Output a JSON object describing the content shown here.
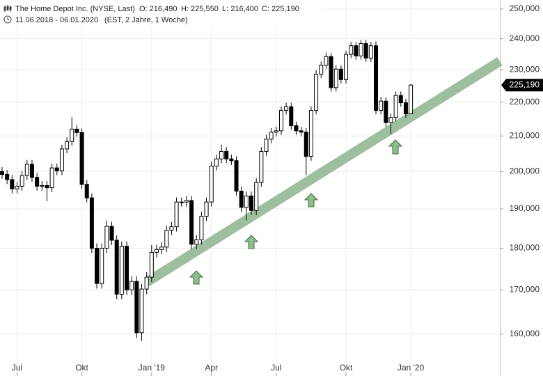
{
  "header": {
    "title": "The Home Depot Inc. (NYSE, Last)",
    "ohlc": [
      "O: 216,490",
      "H: 225,550",
      "L: 216,400",
      "C: 225,190"
    ],
    "range": "11.06.2018 - 06.01.2020",
    "info": "(EST, 2 Jahre, 1 Woche)"
  },
  "chart_data": {
    "type": "candlestick",
    "log_scale": true,
    "grid": true,
    "xlim": [
      -0.42,
      99.86
    ],
    "ylim": [
      151050,
      253100
    ],
    "xticks": [
      {
        "value": 3,
        "label": "Jul"
      },
      {
        "value": 16,
        "label": "Okt"
      },
      {
        "value": 30,
        "label": "Jan '19"
      },
      {
        "value": 42,
        "label": "Apr"
      },
      {
        "value": 55,
        "label": "Jul"
      },
      {
        "value": 69,
        "label": "Okt"
      },
      {
        "value": 82,
        "label": "Jan '20"
      }
    ],
    "yticks": [
      {
        "value": 160000,
        "label": "160,000"
      },
      {
        "value": 170000,
        "label": "170,000"
      },
      {
        "value": 180000,
        "label": "180,000"
      },
      {
        "value": 190000,
        "label": "190,000"
      },
      {
        "value": 200000,
        "label": "200,000"
      },
      {
        "value": 210000,
        "label": "210,000"
      },
      {
        "value": 220000,
        "label": "220,000"
      },
      {
        "value": 230000,
        "label": "230,000"
      },
      {
        "value": 240000,
        "label": "240,000"
      },
      {
        "value": 250000,
        "label": "250,000"
      }
    ],
    "open": [
      200000,
      199200,
      197800,
      195300,
      196000,
      198900,
      202000,
      198400,
      196000,
      196200,
      195600,
      201000,
      200200,
      206300,
      208400,
      212000,
      211000,
      196500,
      192900,
      180000,
      171500,
      180000,
      185500,
      182000,
      169000,
      180500,
      170000,
      172000,
      160300,
      170200,
      173000,
      179000,
      179700,
      180300,
      184500,
      185400,
      191800,
      191800,
      192200,
      181000,
      182100,
      188100,
      191800,
      201500,
      203500,
      205600,
      203500,
      203000,
      194700,
      190400,
      193400,
      189600,
      197000,
      205600,
      209100,
      211100,
      211500,
      217500,
      218600,
      213000,
      211500,
      211100,
      204200,
      217500,
      228600,
      231400,
      234200,
      224400,
      230200,
      226900,
      234900,
      237700,
      234400,
      238400,
      233700,
      237700,
      217500,
      220300,
      213900,
      215400,
      222000,
      219800,
      216490
    ],
    "high": [
      201200,
      200400,
      199000,
      197200,
      200100,
      203200,
      203200,
      199600,
      197400,
      197400,
      202200,
      202200,
      207500,
      209600,
      215500,
      213200,
      212200,
      197700,
      194100,
      181200,
      181200,
      187000,
      186700,
      183200,
      181700,
      181700,
      173200,
      173200,
      171400,
      174200,
      180800,
      180900,
      181500,
      185700,
      186600,
      193000,
      193000,
      193400,
      193400,
      183300,
      189300,
      193000,
      202700,
      204700,
      207500,
      206800,
      204700,
      204200,
      195900,
      194600,
      194600,
      198200,
      206800,
      210300,
      212300,
      212700,
      218700,
      219800,
      219800,
      214200,
      212700,
      212300,
      218700,
      229800,
      232600,
      235500,
      235400,
      231400,
      231400,
      236100,
      238900,
      238900,
      239600,
      239600,
      238900,
      239100,
      221500,
      221500,
      216600,
      223200,
      223200,
      221000,
      225550
    ],
    "low": [
      198000,
      196600,
      194100,
      194100,
      194800,
      197700,
      197200,
      194800,
      194800,
      192000,
      194400,
      199000,
      199000,
      205100,
      207200,
      209800,
      195300,
      191700,
      178800,
      170300,
      170300,
      178800,
      180800,
      167800,
      167800,
      168800,
      168800,
      159100,
      158500,
      169000,
      171800,
      177800,
      178500,
      179100,
      183300,
      184200,
      190600,
      190600,
      179800,
      179800,
      180900,
      186900,
      190600,
      200300,
      202300,
      202300,
      201800,
      193500,
      189200,
      187000,
      188400,
      188400,
      195800,
      204400,
      207900,
      209900,
      210300,
      216300,
      211800,
      210300,
      209900,
      199000,
      203000,
      216300,
      227400,
      230200,
      223200,
      223200,
      225700,
      225700,
      233700,
      233200,
      233200,
      232500,
      232500,
      216300,
      216300,
      212700,
      210500,
      214200,
      218600,
      215300,
      216400
    ],
    "close": [
      199200,
      197800,
      195300,
      196000,
      198900,
      202000,
      198400,
      196000,
      196200,
      195600,
      201000,
      200200,
      206300,
      208400,
      212000,
      211000,
      196500,
      192900,
      180000,
      171500,
      180000,
      185500,
      182000,
      169000,
      180500,
      170000,
      172000,
      160300,
      170200,
      173000,
      179000,
      179700,
      180300,
      184500,
      185400,
      191800,
      191800,
      192200,
      181000,
      182100,
      188100,
      191800,
      201500,
      203500,
      205600,
      203500,
      203000,
      194700,
      190400,
      193400,
      189600,
      197000,
      205600,
      209100,
      211100,
      211500,
      217500,
      218600,
      213000,
      211500,
      211100,
      204200,
      217500,
      228600,
      231400,
      234200,
      224400,
      230200,
      226900,
      234900,
      237700,
      234400,
      238400,
      233700,
      237700,
      217500,
      220300,
      213900,
      215400,
      222000,
      219800,
      216490,
      225190
    ],
    "up_color": "#ffffff",
    "down_color": "#000000",
    "last": {
      "value": 225190,
      "label": "225,190"
    },
    "trendline": {
      "x": [
        29,
        99.86
      ],
      "y": [
        171800,
        232700
      ],
      "color": "#9dbf9f"
    }
  }
}
